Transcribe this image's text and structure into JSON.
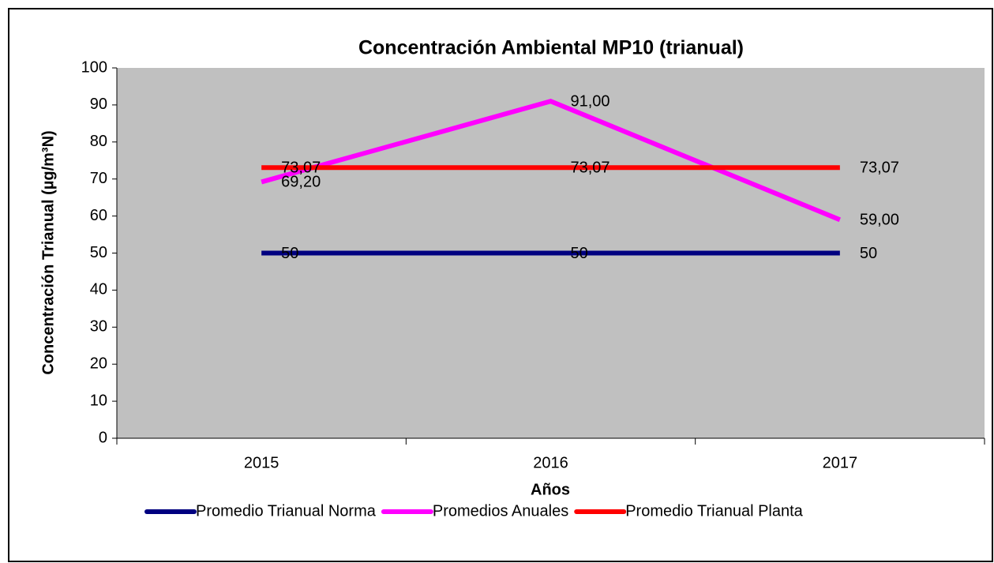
{
  "chart_data": {
    "type": "line",
    "title": "Concentración Ambiental MP10 (trianual)",
    "x_label": "Años",
    "y_label": "Concentración Trianual (µg/m³N)",
    "categories": [
      "2015",
      "2016",
      "2017"
    ],
    "ylim": [
      0,
      100
    ],
    "yticks": [
      0,
      10,
      20,
      30,
      40,
      50,
      60,
      70,
      80,
      90,
      100
    ],
    "legend": "bottom",
    "plot_background": "#c0c0c0",
    "series": [
      {
        "name": "Promedio Trianual Norma",
        "color": "#000080",
        "values": [
          50,
          50,
          50
        ],
        "value_labels": [
          "50",
          "50",
          "50"
        ]
      },
      {
        "name": "Promedios Anuales",
        "color": "#ff00ff",
        "values": [
          69.2,
          91,
          59
        ],
        "value_labels": [
          "69,20",
          "91,00",
          "59,00"
        ]
      },
      {
        "name": "Promedio Trianual Planta",
        "color": "#ff0000",
        "values": [
          73.07,
          73.07,
          73.07
        ],
        "value_labels": [
          "73,07",
          "73,07",
          "73,07"
        ]
      }
    ]
  }
}
